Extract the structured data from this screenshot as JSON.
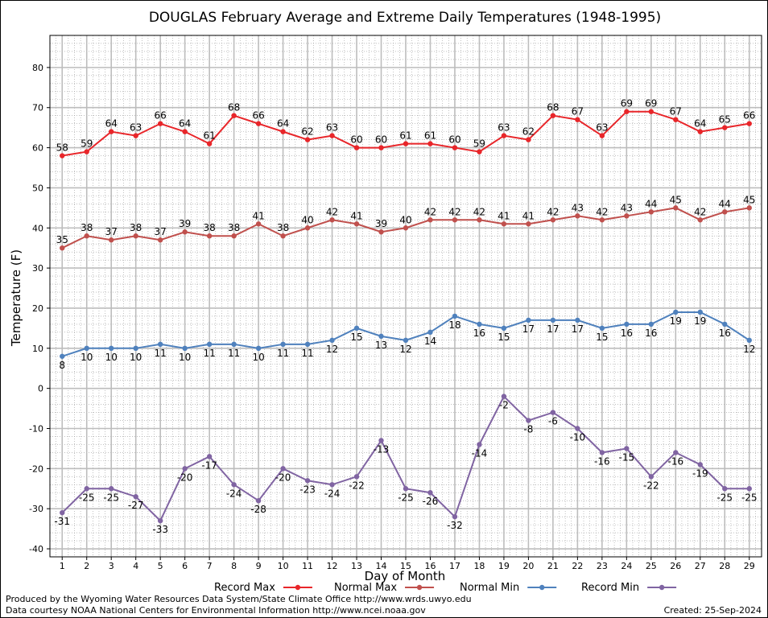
{
  "chart_data": {
    "type": "line",
    "title": "DOUGLAS February Average and Extreme Daily Temperatures (1948-1995)",
    "xlabel": "Day of Month",
    "ylabel": "Temperature (F)",
    "ylim": [
      -42,
      88
    ],
    "yticks": [
      80,
      70,
      60,
      50,
      40,
      30,
      20,
      10,
      0,
      -10,
      -20,
      -30,
      -40
    ],
    "x": [
      1,
      2,
      3,
      4,
      5,
      6,
      7,
      8,
      9,
      10,
      11,
      12,
      13,
      14,
      15,
      16,
      17,
      18,
      19,
      20,
      21,
      22,
      23,
      24,
      25,
      26,
      27,
      28,
      29
    ],
    "grid": true,
    "legend_position": "bottom",
    "series": [
      {
        "name": "Record Max",
        "color": "#e8262a",
        "label_pos": "above",
        "values": [
          58,
          59,
          64,
          63,
          66,
          64,
          61,
          68,
          66,
          64,
          62,
          63,
          60,
          60,
          61,
          61,
          60,
          59,
          63,
          62,
          68,
          67,
          63,
          69,
          69,
          67,
          64,
          65,
          66
        ]
      },
      {
        "name": "Normal Max",
        "color": "#c0504d",
        "label_pos": "above",
        "values": [
          35,
          38,
          37,
          38,
          37,
          39,
          38,
          38,
          41,
          38,
          40,
          42,
          41,
          39,
          40,
          42,
          42,
          42,
          41,
          41,
          42,
          43,
          42,
          43,
          44,
          45,
          42,
          44,
          45
        ]
      },
      {
        "name": "Normal Min",
        "color": "#4f81bd",
        "label_pos": "below",
        "values": [
          8,
          10,
          10,
          10,
          11,
          10,
          11,
          11,
          10,
          11,
          11,
          12,
          15,
          13,
          12,
          14,
          18,
          16,
          15,
          17,
          17,
          17,
          15,
          16,
          16,
          19,
          19,
          16,
          12
        ]
      },
      {
        "name": "Record Min",
        "color": "#8064a2",
        "label_pos": "below",
        "values": [
          -31,
          -25,
          -25,
          -27,
          -33,
          -20,
          -17,
          -24,
          -28,
          -20,
          -23,
          -24,
          -22,
          -13,
          -25,
          -26,
          -32,
          -14,
          -2,
          -8,
          -6,
          -10,
          -16,
          -15,
          -22,
          -16,
          -19,
          -25,
          -25
        ]
      }
    ]
  },
  "footer": {
    "line1": "Produced by the Wyoming Water Resources Data System/State Climate Office http://www.wrds.uwyo.edu",
    "line2": "Data courtesy NOAA National Centers for Environmental Information http://www.ncei.noaa.gov",
    "created": "Created:  25-Sep-2024"
  }
}
